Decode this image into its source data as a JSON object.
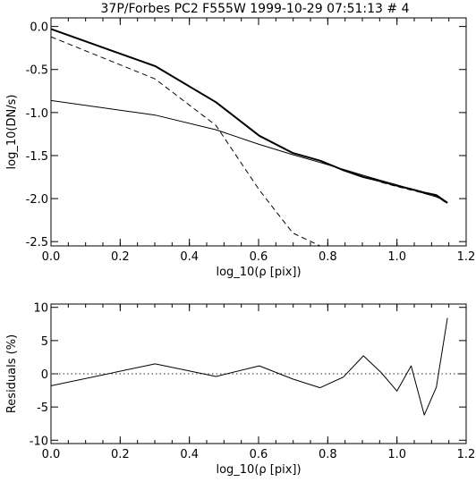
{
  "title": "37P/Forbes PC2 F555W 1999-10-29 07:51:13 # 4",
  "chart_data": [
    {
      "type": "line",
      "xlabel": "log_10(ρ [pix])",
      "ylabel": "log_10(DN/s)",
      "xlim": [
        0.0,
        1.2
      ],
      "ylim": [
        -2.55,
        0.1
      ],
      "xticks": [
        "0.0",
        "0.2",
        "0.4",
        "0.6",
        "0.8",
        "1.0",
        "1.2"
      ],
      "yticks": [
        "-2.5",
        "-2.0",
        "-1.5",
        "-1.0",
        "-0.5",
        "0.0"
      ],
      "series": [
        {
          "style": "thick",
          "x": [
            0.0,
            0.301,
            0.477,
            0.602,
            0.699,
            0.778,
            0.845,
            0.903,
            0.954,
            1.0,
            1.041,
            1.079,
            1.114,
            1.146
          ],
          "y": [
            -0.03,
            -0.46,
            -0.88,
            -1.27,
            -1.47,
            -1.56,
            -1.67,
            -1.75,
            -1.8,
            -1.85,
            -1.89,
            -1.93,
            -1.96,
            -2.05
          ]
        },
        {
          "style": "dashed",
          "x": [
            0.0,
            0.301,
            0.477,
            0.602,
            0.699,
            0.778
          ],
          "y": [
            -0.12,
            -0.61,
            -1.15,
            -1.9,
            -2.4,
            -2.55
          ]
        },
        {
          "style": "dashed",
          "x": [
            0.954,
            1.0,
            1.041,
            1.079,
            1.114,
            1.146
          ],
          "y": [
            -1.81,
            -1.86,
            -1.9,
            -1.94,
            -1.97,
            -2.06
          ]
        },
        {
          "style": "thin",
          "x": [
            0.0,
            0.301,
            0.477,
            0.602,
            0.699,
            0.778,
            0.845,
            0.903,
            0.954,
            1.0,
            1.041,
            1.079,
            1.114,
            1.146
          ],
          "y": [
            -0.86,
            -1.03,
            -1.2,
            -1.37,
            -1.49,
            -1.58,
            -1.66,
            -1.73,
            -1.79,
            -1.84,
            -1.89,
            -1.94,
            -1.98,
            -2.04
          ]
        }
      ]
    },
    {
      "type": "line",
      "xlabel": "log_10(ρ [pix])",
      "ylabel": "Residuals (%)",
      "xlim": [
        0.0,
        1.2
      ],
      "ylim": [
        -10.5,
        10.5
      ],
      "xticks": [
        "0.0",
        "0.2",
        "0.4",
        "0.6",
        "0.8",
        "1.0",
        "1.2"
      ],
      "yticks": [
        "-10",
        "-5",
        "0",
        "5",
        "10"
      ],
      "reference_line": {
        "y": 0,
        "style": "dotted"
      },
      "series": [
        {
          "style": "thin",
          "x": [
            0.0,
            0.301,
            0.477,
            0.602,
            0.699,
            0.778,
            0.845,
            0.903,
            0.954,
            1.0,
            1.041,
            1.079,
            1.114,
            1.146
          ],
          "y": [
            -1.8,
            1.5,
            -0.4,
            1.2,
            -0.8,
            -2.1,
            -0.5,
            2.7,
            0.2,
            -2.6,
            1.2,
            -6.2,
            -2.0,
            8.4
          ]
        }
      ]
    }
  ]
}
